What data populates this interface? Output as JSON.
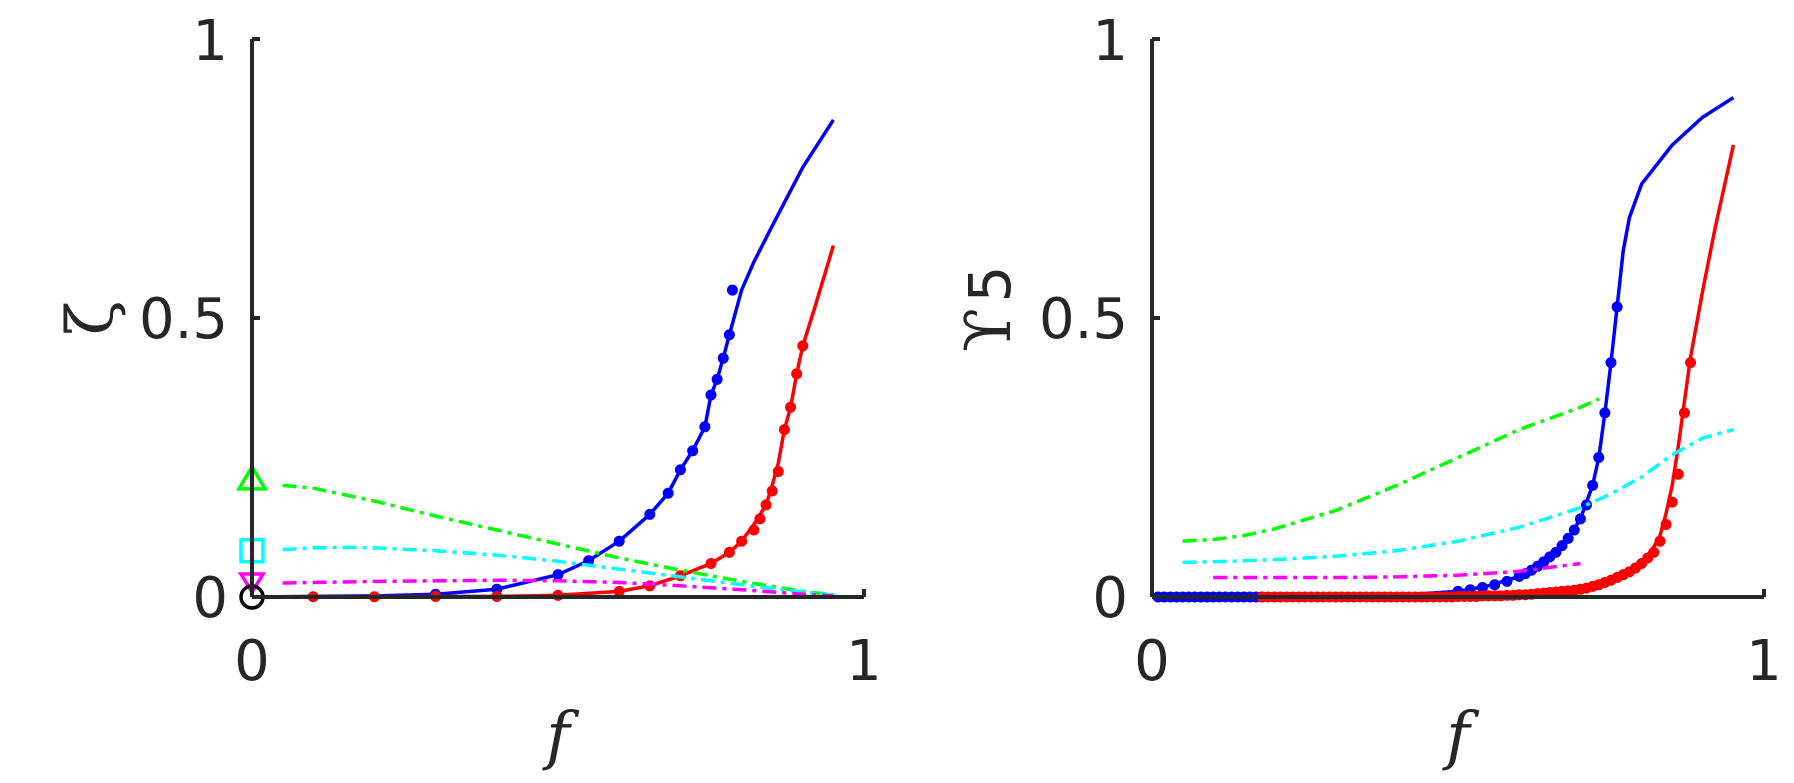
{
  "chart_data": [
    {
      "type": "line",
      "xlabel": "f",
      "ylabel": "ζ",
      "xlim": [
        0,
        1
      ],
      "ylim": [
        0,
        1
      ],
      "x_ticks": [
        "0",
        "1"
      ],
      "y_ticks": [
        "0",
        "0.5",
        "1"
      ],
      "grid": false,
      "series": [
        {
          "color": "#0000ff",
          "style": "solid",
          "x": [
            0,
            0.1,
            0.2,
            0.3,
            0.4,
            0.5,
            0.55,
            0.6,
            0.65,
            0.68,
            0.7,
            0.72,
            0.74,
            0.75,
            0.76,
            0.77,
            0.78,
            0.8,
            0.82,
            0.85,
            0.9,
            0.95
          ],
          "y": [
            0,
            0.001,
            0.002,
            0.005,
            0.014,
            0.04,
            0.065,
            0.1,
            0.148,
            0.186,
            0.228,
            0.262,
            0.305,
            0.362,
            0.39,
            0.428,
            0.47,
            0.55,
            0.6,
            0.665,
            0.77,
            0.855
          ]
        },
        {
          "color": "#0000ff",
          "style": "markers",
          "x": [
            0.3,
            0.4,
            0.5,
            0.55,
            0.6,
            0.65,
            0.68,
            0.7,
            0.72,
            0.74,
            0.75,
            0.76,
            0.77,
            0.78,
            0.785
          ],
          "y": [
            0.005,
            0.014,
            0.04,
            0.065,
            0.1,
            0.148,
            0.186,
            0.228,
            0.262,
            0.305,
            0.362,
            0.39,
            0.428,
            0.47,
            0.55
          ]
        },
        {
          "color": "#ff0000",
          "style": "solid",
          "x": [
            0,
            0.2,
            0.4,
            0.5,
            0.6,
            0.65,
            0.7,
            0.75,
            0.78,
            0.8,
            0.82,
            0.84,
            0.85,
            0.86,
            0.87,
            0.88,
            0.89,
            0.9,
            0.92,
            0.95
          ],
          "y": [
            0,
            0.0005,
            0.001,
            0.003,
            0.01,
            0.02,
            0.038,
            0.06,
            0.08,
            0.1,
            0.13,
            0.165,
            0.2,
            0.24,
            0.3,
            0.34,
            0.4,
            0.45,
            0.52,
            0.63
          ]
        },
        {
          "color": "#ff0000",
          "style": "markers",
          "x": [
            0.1,
            0.2,
            0.3,
            0.4,
            0.5,
            0.6,
            0.65,
            0.7,
            0.75,
            0.78,
            0.8,
            0.82,
            0.83,
            0.84,
            0.85,
            0.86,
            0.87,
            0.88,
            0.89,
            0.9
          ],
          "y": [
            0.0005,
            0.0005,
            0.001,
            0.001,
            0.003,
            0.01,
            0.02,
            0.038,
            0.06,
            0.08,
            0.1,
            0.12,
            0.14,
            0.165,
            0.19,
            0.225,
            0.3,
            0.34,
            0.4,
            0.45
          ]
        },
        {
          "color": "#00ff00",
          "style": "dashdot",
          "x": [
            0.05,
            0.1,
            0.2,
            0.3,
            0.4,
            0.5,
            0.6,
            0.7,
            0.8,
            0.9,
            0.95
          ],
          "y": [
            0.2,
            0.195,
            0.172,
            0.145,
            0.12,
            0.095,
            0.07,
            0.048,
            0.028,
            0.01,
            0.004
          ]
        },
        {
          "color": "#00ffff",
          "style": "dashdot",
          "x": [
            0.05,
            0.1,
            0.15,
            0.2,
            0.3,
            0.4,
            0.5,
            0.6,
            0.7,
            0.8,
            0.9,
            0.95
          ],
          "y": [
            0.085,
            0.088,
            0.089,
            0.088,
            0.083,
            0.075,
            0.064,
            0.05,
            0.036,
            0.022,
            0.009,
            0.003
          ]
        },
        {
          "color": "#ff00ff",
          "style": "dashdot",
          "x": [
            0.05,
            0.2,
            0.4,
            0.5,
            0.6,
            0.7,
            0.8,
            0.9,
            0.95
          ],
          "y": [
            0.025,
            0.028,
            0.03,
            0.029,
            0.026,
            0.02,
            0.013,
            0.005,
            0.002
          ]
        }
      ],
      "axis_markers": [
        {
          "shape": "triangle",
          "color": "#00ff00",
          "y": 0.21
        },
        {
          "shape": "square",
          "color": "#00ffff",
          "y": 0.083
        },
        {
          "shape": "triangle-down",
          "color": "#ff00ff",
          "y": 0.025
        },
        {
          "shape": "circle",
          "color": "#000000",
          "y": 0
        }
      ]
    },
    {
      "type": "line",
      "xlabel": "f",
      "ylabel": "ϒ",
      "ylabel_subscript": "5",
      "xlim": [
        0,
        1
      ],
      "ylim": [
        0,
        1
      ],
      "x_ticks": [
        "0",
        "1"
      ],
      "y_ticks": [
        "0",
        "0.5",
        "1"
      ],
      "grid": false,
      "series": [
        {
          "color": "#0000ff",
          "style": "solid",
          "x": [
            0,
            0.2,
            0.4,
            0.5,
            0.55,
            0.6,
            0.63,
            0.66,
            0.68,
            0.7,
            0.72,
            0.73,
            0.74,
            0.75,
            0.76,
            0.77,
            0.78,
            0.8,
            0.85,
            0.9,
            0.95
          ],
          "y": [
            0,
            0.0003,
            0.003,
            0.01,
            0.02,
            0.037,
            0.055,
            0.08,
            0.105,
            0.14,
            0.2,
            0.25,
            0.33,
            0.42,
            0.52,
            0.62,
            0.68,
            0.74,
            0.81,
            0.86,
            0.895
          ]
        },
        {
          "color": "#0000ff",
          "style": "markers",
          "x": [
            0.01,
            0.02,
            0.03,
            0.04,
            0.05,
            0.06,
            0.07,
            0.08,
            0.09,
            0.1,
            0.11,
            0.12,
            0.13,
            0.14,
            0.15,
            0.16,
            0.17,
            0.18,
            0.5,
            0.52,
            0.54,
            0.56,
            0.58,
            0.6,
            0.61,
            0.62,
            0.63,
            0.64,
            0.65,
            0.66,
            0.67,
            0.68,
            0.69,
            0.7,
            0.71,
            0.72,
            0.73,
            0.74,
            0.75,
            0.76
          ],
          "y": [
            0,
            0,
            0,
            0,
            0,
            0,
            0,
            0,
            0,
            0,
            0,
            0,
            0,
            0,
            0,
            0,
            0,
            0,
            0.01,
            0.013,
            0.017,
            0.022,
            0.028,
            0.037,
            0.042,
            0.048,
            0.055,
            0.063,
            0.072,
            0.08,
            0.092,
            0.105,
            0.12,
            0.14,
            0.165,
            0.2,
            0.25,
            0.33,
            0.42,
            0.52
          ]
        },
        {
          "color": "#ff0000",
          "style": "solid",
          "x": [
            0.18,
            0.4,
            0.5,
            0.6,
            0.7,
            0.75,
            0.78,
            0.8,
            0.82,
            0.83,
            0.84,
            0.85,
            0.86,
            0.87,
            0.88,
            0.9,
            0.92,
            0.95
          ],
          "y": [
            0,
            0.0003,
            0.001,
            0.004,
            0.014,
            0.03,
            0.045,
            0.06,
            0.09,
            0.11,
            0.15,
            0.2,
            0.27,
            0.35,
            0.43,
            0.55,
            0.66,
            0.81
          ]
        },
        {
          "color": "#ff0000",
          "style": "markers",
          "x": [
            0.18,
            0.19,
            0.2,
            0.21,
            0.22,
            0.23,
            0.24,
            0.25,
            0.26,
            0.27,
            0.28,
            0.29,
            0.3,
            0.31,
            0.32,
            0.33,
            0.34,
            0.35,
            0.36,
            0.37,
            0.38,
            0.39,
            0.4,
            0.41,
            0.42,
            0.43,
            0.44,
            0.45,
            0.46,
            0.47,
            0.48,
            0.49,
            0.5,
            0.51,
            0.52,
            0.53,
            0.54,
            0.55,
            0.56,
            0.57,
            0.58,
            0.59,
            0.6,
            0.61,
            0.62,
            0.63,
            0.64,
            0.65,
            0.66,
            0.67,
            0.68,
            0.69,
            0.7,
            0.71,
            0.72,
            0.73,
            0.74,
            0.75,
            0.76,
            0.77,
            0.78,
            0.79,
            0.8,
            0.81,
            0.82,
            0.83,
            0.84,
            0.85,
            0.86,
            0.87,
            0.88
          ],
          "y": [
            0,
            0,
            0,
            0,
            0,
            0,
            0,
            0,
            0,
            0,
            0,
            0,
            0,
            0,
            0,
            0,
            0,
            0,
            0,
            0,
            0,
            0,
            0,
            0,
            0,
            0,
            0,
            0,
            0,
            0,
            0,
            0,
            0.001,
            0.001,
            0.001,
            0.001,
            0.002,
            0.002,
            0.002,
            0.002,
            0.003,
            0.003,
            0.004,
            0.004,
            0.005,
            0.006,
            0.007,
            0.008,
            0.009,
            0.01,
            0.011,
            0.012,
            0.014,
            0.016,
            0.019,
            0.022,
            0.026,
            0.03,
            0.035,
            0.04,
            0.045,
            0.052,
            0.06,
            0.07,
            0.08,
            0.1,
            0.13,
            0.17,
            0.22,
            0.33,
            0.42
          ]
        },
        {
          "color": "#00ff00",
          "style": "dashdot",
          "x": [
            0.05,
            0.1,
            0.15,
            0.2,
            0.3,
            0.4,
            0.5,
            0.6,
            0.7,
            0.73
          ],
          "y": [
            0.1,
            0.103,
            0.11,
            0.122,
            0.155,
            0.2,
            0.25,
            0.3,
            0.34,
            0.355
          ]
        },
        {
          "color": "#00ffff",
          "style": "dashdot",
          "x": [
            0.05,
            0.1,
            0.2,
            0.3,
            0.4,
            0.5,
            0.6,
            0.7,
            0.75,
            0.8,
            0.85,
            0.9,
            0.95
          ],
          "y": [
            0.062,
            0.063,
            0.067,
            0.073,
            0.083,
            0.1,
            0.125,
            0.16,
            0.185,
            0.215,
            0.255,
            0.285,
            0.3
          ]
        },
        {
          "color": "#ff00ff",
          "style": "dashdot",
          "x": [
            0.1,
            0.2,
            0.3,
            0.4,
            0.5,
            0.6,
            0.65,
            0.7
          ],
          "y": [
            0.035,
            0.035,
            0.035,
            0.036,
            0.039,
            0.046,
            0.053,
            0.06
          ]
        }
      ],
      "axis_markers": []
    }
  ]
}
